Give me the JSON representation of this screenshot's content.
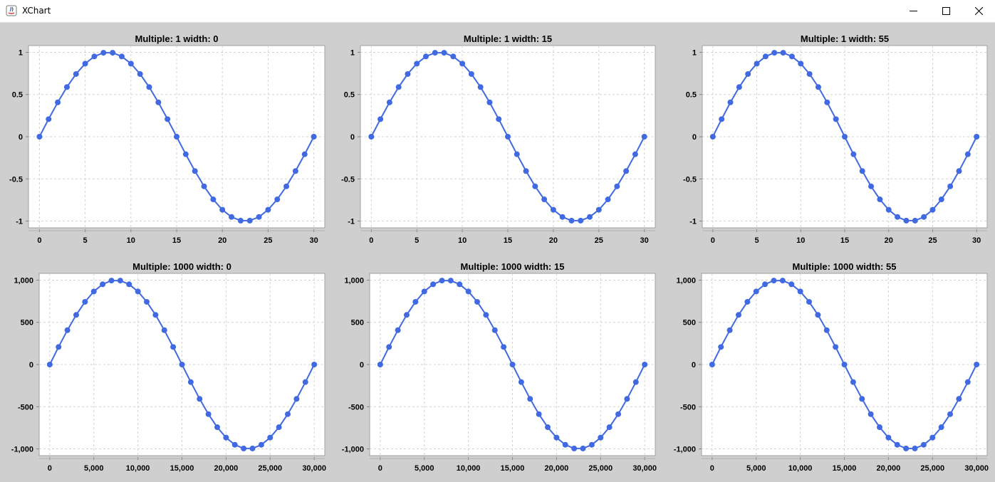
{
  "window": {
    "title": "XChart"
  },
  "charts": [
    {
      "title": "Multiple: 1 width: 0",
      "x": {
        "min": 0,
        "max": 30,
        "ticks": [
          0,
          5,
          10,
          15,
          20,
          25,
          30
        ],
        "tick_labels": [
          "0",
          "5",
          "10",
          "15",
          "20",
          "25",
          "30"
        ]
      },
      "y": {
        "min": -1,
        "max": 1,
        "ticks": [
          -1,
          -0.5,
          0,
          0.5,
          1
        ],
        "tick_labels": [
          "-1",
          "-0.5",
          "0",
          "0.5",
          "1"
        ]
      }
    },
    {
      "title": "Multiple: 1 width: 15",
      "x": {
        "min": 0,
        "max": 30,
        "ticks": [
          0,
          5,
          10,
          15,
          20,
          25,
          30
        ],
        "tick_labels": [
          "0",
          "5",
          "10",
          "15",
          "20",
          "25",
          "30"
        ]
      },
      "y": {
        "min": -1,
        "max": 1,
        "ticks": [
          -1,
          -0.5,
          0,
          0.5,
          1
        ],
        "tick_labels": [
          "-1",
          "-0.5",
          "0",
          "0.5",
          "1"
        ]
      }
    },
    {
      "title": "Multiple: 1 width: 55",
      "x": {
        "min": 0,
        "max": 30,
        "ticks": [
          0,
          5,
          10,
          15,
          20,
          25,
          30
        ],
        "tick_labels": [
          "0",
          "5",
          "10",
          "15",
          "20",
          "25",
          "30"
        ]
      },
      "y": {
        "min": -1,
        "max": 1,
        "ticks": [
          -1,
          -0.5,
          0,
          0.5,
          1
        ],
        "tick_labels": [
          "-1",
          "-0.5",
          "0",
          "0.5",
          "1"
        ]
      }
    },
    {
      "title": "Multiple: 1000 width: 0",
      "x": {
        "min": 0,
        "max": 30000,
        "ticks": [
          0,
          5000,
          10000,
          15000,
          20000,
          25000,
          30000
        ],
        "tick_labels": [
          "0",
          "5,000",
          "10,000",
          "15,000",
          "20,000",
          "25,000",
          "30,000"
        ]
      },
      "y": {
        "min": -1000,
        "max": 1000,
        "ticks": [
          -1000,
          -500,
          0,
          500,
          1000
        ],
        "tick_labels": [
          "-1,000",
          "-500",
          "0",
          "500",
          "1,000"
        ]
      }
    },
    {
      "title": "Multiple: 1000 width: 15",
      "x": {
        "min": 0,
        "max": 30000,
        "ticks": [
          0,
          5000,
          10000,
          15000,
          20000,
          25000,
          30000
        ],
        "tick_labels": [
          "0",
          "5,000",
          "10,000",
          "15,000",
          "20,000",
          "25,000",
          "30,000"
        ]
      },
      "y": {
        "min": -1000,
        "max": 1000,
        "ticks": [
          -1000,
          -500,
          0,
          500,
          1000
        ],
        "tick_labels": [
          "-1,000",
          "-500",
          "0",
          "500",
          "1,000"
        ]
      }
    },
    {
      "title": "Multiple: 1000 width: 55",
      "x": {
        "min": 0,
        "max": 30000,
        "ticks": [
          0,
          5000,
          10000,
          15000,
          20000,
          25000,
          30000
        ],
        "tick_labels": [
          "0",
          "5,000",
          "10,000",
          "15,000",
          "20,000",
          "25,000",
          "30,000"
        ]
      },
      "y": {
        "min": -1000,
        "max": 1000,
        "ticks": [
          -1000,
          -500,
          0,
          500,
          1000
        ],
        "tick_labels": [
          "-1,000",
          "-500",
          "0",
          "500",
          "1,000"
        ]
      }
    }
  ],
  "chart_data": [
    {
      "type": "line",
      "title": "Multiple: 1 width: 0",
      "grid": true,
      "color": "#4169e1",
      "x": [
        0,
        1,
        2,
        3,
        4,
        5,
        6,
        7,
        8,
        9,
        10,
        11,
        12,
        13,
        14,
        15,
        16,
        17,
        18,
        19,
        20,
        21,
        22,
        23,
        24,
        25,
        26,
        27,
        28,
        29,
        30
      ],
      "y": [
        0,
        0.208,
        0.407,
        0.588,
        0.743,
        0.866,
        0.951,
        0.995,
        0.995,
        0.951,
        0.866,
        0.743,
        0.588,
        0.407,
        0.208,
        0,
        -0.208,
        -0.407,
        -0.588,
        -0.743,
        -0.866,
        -0.951,
        -0.995,
        -0.995,
        -0.951,
        -0.866,
        -0.743,
        -0.588,
        -0.407,
        -0.208,
        0
      ],
      "xlim": [
        0,
        30
      ],
      "ylim": [
        -1,
        1
      ]
    },
    {
      "type": "line",
      "title": "Multiple: 1 width: 15",
      "grid": true,
      "color": "#4169e1",
      "x": [
        0,
        1,
        2,
        3,
        4,
        5,
        6,
        7,
        8,
        9,
        10,
        11,
        12,
        13,
        14,
        15,
        16,
        17,
        18,
        19,
        20,
        21,
        22,
        23,
        24,
        25,
        26,
        27,
        28,
        29,
        30
      ],
      "y": [
        0,
        0.208,
        0.407,
        0.588,
        0.743,
        0.866,
        0.951,
        0.995,
        0.995,
        0.951,
        0.866,
        0.743,
        0.588,
        0.407,
        0.208,
        0,
        -0.208,
        -0.407,
        -0.588,
        -0.743,
        -0.866,
        -0.951,
        -0.995,
        -0.995,
        -0.951,
        -0.866,
        -0.743,
        -0.588,
        -0.407,
        -0.208,
        0
      ],
      "xlim": [
        0,
        30
      ],
      "ylim": [
        -1,
        1
      ]
    },
    {
      "type": "line",
      "title": "Multiple: 1 width: 55",
      "grid": true,
      "color": "#4169e1",
      "x": [
        0,
        1,
        2,
        3,
        4,
        5,
        6,
        7,
        8,
        9,
        10,
        11,
        12,
        13,
        14,
        15,
        16,
        17,
        18,
        19,
        20,
        21,
        22,
        23,
        24,
        25,
        26,
        27,
        28,
        29,
        30
      ],
      "y": [
        0,
        0.208,
        0.407,
        0.588,
        0.743,
        0.866,
        0.951,
        0.995,
        0.995,
        0.951,
        0.866,
        0.743,
        0.588,
        0.407,
        0.208,
        0,
        -0.208,
        -0.407,
        -0.588,
        -0.743,
        -0.866,
        -0.951,
        -0.995,
        -0.995,
        -0.951,
        -0.866,
        -0.743,
        -0.588,
        -0.407,
        -0.208,
        0
      ],
      "xlim": [
        0,
        30
      ],
      "ylim": [
        -1,
        1
      ]
    },
    {
      "type": "line",
      "title": "Multiple: 1000 width: 0",
      "grid": true,
      "color": "#4169e1",
      "x": [
        0,
        1000,
        2000,
        3000,
        4000,
        5000,
        6000,
        7000,
        8000,
        9000,
        10000,
        11000,
        12000,
        13000,
        14000,
        15000,
        16000,
        17000,
        18000,
        19000,
        20000,
        21000,
        22000,
        23000,
        24000,
        25000,
        26000,
        27000,
        28000,
        29000,
        30000
      ],
      "y": [
        0,
        208,
        407,
        588,
        743,
        866,
        951,
        995,
        995,
        951,
        866,
        743,
        588,
        407,
        208,
        0,
        -208,
        -407,
        -588,
        -743,
        -866,
        -951,
        -995,
        -995,
        -951,
        -866,
        -743,
        -588,
        -407,
        -208,
        0
      ],
      "xlim": [
        0,
        30000
      ],
      "ylim": [
        -1000,
        1000
      ]
    },
    {
      "type": "line",
      "title": "Multiple: 1000 width: 15",
      "grid": true,
      "color": "#4169e1",
      "x": [
        0,
        1000,
        2000,
        3000,
        4000,
        5000,
        6000,
        7000,
        8000,
        9000,
        10000,
        11000,
        12000,
        13000,
        14000,
        15000,
        16000,
        17000,
        18000,
        19000,
        20000,
        21000,
        22000,
        23000,
        24000,
        25000,
        26000,
        27000,
        28000,
        29000,
        30000
      ],
      "y": [
        0,
        208,
        407,
        588,
        743,
        866,
        951,
        995,
        995,
        951,
        866,
        743,
        588,
        407,
        208,
        0,
        -208,
        -407,
        -588,
        -743,
        -866,
        -951,
        -995,
        -995,
        -951,
        -866,
        -743,
        -588,
        -407,
        -208,
        0
      ],
      "xlim": [
        0,
        30000
      ],
      "ylim": [
        -1000,
        1000
      ]
    },
    {
      "type": "line",
      "title": "Multiple: 1000 width: 55",
      "grid": true,
      "color": "#4169e1",
      "x": [
        0,
        1000,
        2000,
        3000,
        4000,
        5000,
        6000,
        7000,
        8000,
        9000,
        10000,
        11000,
        12000,
        13000,
        14000,
        15000,
        16000,
        17000,
        18000,
        19000,
        20000,
        21000,
        22000,
        23000,
        24000,
        25000,
        26000,
        27000,
        28000,
        29000,
        30000
      ],
      "y": [
        0,
        208,
        407,
        588,
        743,
        866,
        951,
        995,
        995,
        951,
        866,
        743,
        588,
        407,
        208,
        0,
        -208,
        -407,
        -588,
        -743,
        -866,
        -951,
        -995,
        -995,
        -951,
        -866,
        -743,
        -588,
        -407,
        -208,
        0
      ],
      "xlim": [
        0,
        30000
      ],
      "ylim": [
        -1000,
        1000
      ]
    }
  ]
}
